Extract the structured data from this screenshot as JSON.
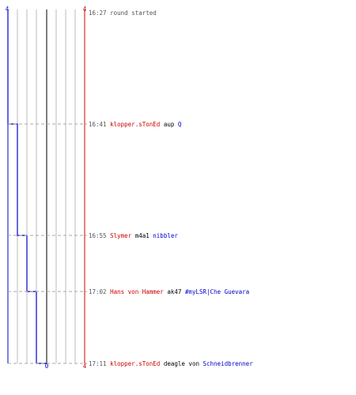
{
  "colors": {
    "team_a": "#0000cc",
    "team_b": "#cc0000",
    "neutral_text": "#000000",
    "time_text": "#555555",
    "grid": "#bbbbbb",
    "center": "#555555",
    "dashed": "#aaaaaa"
  },
  "scale": {
    "left_score": "4",
    "right_score": "4",
    "zero": "0",
    "right_bottom": "4"
  },
  "events": [
    {
      "time": "16:27",
      "text": "round started",
      "attacker": "",
      "weapon": "",
      "victim": "",
      "team_a_score": 0,
      "team_b_score": 0
    },
    {
      "time": "16:41",
      "text": "",
      "attacker": "klopper.sTonEd",
      "weapon": "aup",
      "victim": "Q",
      "team_a_score": 1,
      "team_b_score": 0
    },
    {
      "time": "16:55",
      "text": "",
      "attacker": "Slymer",
      "weapon": "m4a1",
      "victim": "nibbler",
      "team_a_score": 2,
      "team_b_score": 0
    },
    {
      "time": "17:02",
      "text": "",
      "attacker": "Hans von Hammer",
      "weapon": "ak47",
      "victim": "#myLSR|Che Guevara",
      "team_a_score": 3,
      "team_b_score": 0
    },
    {
      "time": "17:11",
      "text": "",
      "attacker": "klopper.sTonEd",
      "weapon": "deagle von",
      "victim": "Schneidbrenner",
      "team_a_score": 4,
      "team_b_score": 0
    }
  ]
}
